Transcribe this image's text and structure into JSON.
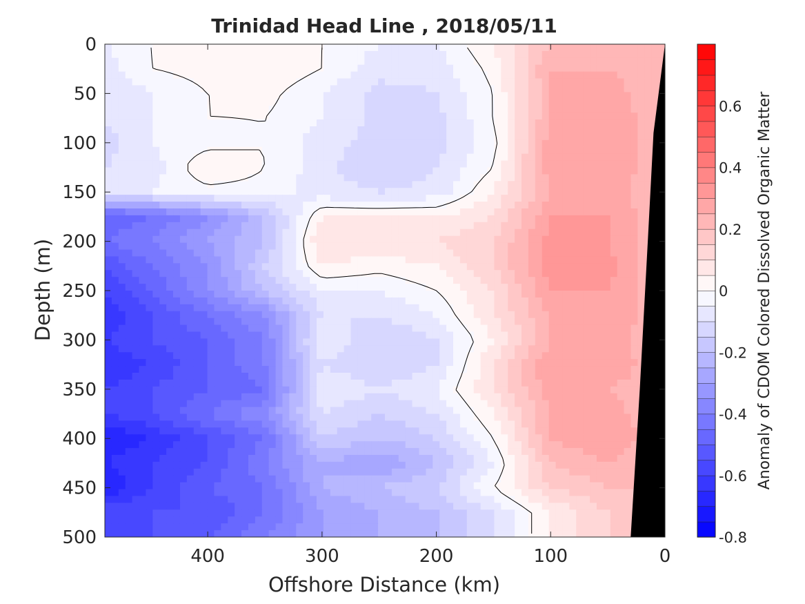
{
  "chart_data": {
    "type": "heatmap",
    "title": "Trinidad Head Line , 2018/05/11",
    "xlabel": "Offshore Distance (km)",
    "ylabel": "Depth (m)",
    "colorbar_label": "Anomaly of CDOM Colored Dissolved Organic Matter",
    "xlim": [
      490,
      0
    ],
    "ylim": [
      0,
      500
    ],
    "x_reversed": true,
    "y_reversed": true,
    "x_ticks": [
      400,
      300,
      200,
      100,
      0
    ],
    "x_tick_labels": [
      "400",
      "300",
      "200",
      "100",
      "0"
    ],
    "y_ticks": [
      0,
      50,
      100,
      150,
      200,
      250,
      300,
      350,
      400,
      450,
      500
    ],
    "y_tick_labels": [
      "0",
      "50",
      "100",
      "150",
      "200",
      "250",
      "300",
      "350",
      "400",
      "450",
      "500"
    ],
    "clim": [
      -0.8,
      0.8
    ],
    "colorbar_ticks": [
      0.6,
      0.4,
      0.2,
      0,
      -0.2,
      -0.4,
      -0.6,
      -0.8
    ],
    "colorbar_tick_labels": [
      "0.6",
      "0.4",
      "0.2",
      "0",
      "-0.2",
      "-0.4",
      "-0.6",
      "-0.8"
    ],
    "colormap": {
      "low": "#0000ff",
      "mid": "#ffffff",
      "high": "#ff0000",
      "levels": 32
    },
    "bottom_fill_color": "#000000",
    "bottom_profile": [
      [
        0,
        0
      ],
      [
        10,
        90
      ],
      [
        15,
        200
      ],
      [
        22,
        350
      ],
      [
        30,
        500
      ]
    ],
    "depth_rows": [
      0,
      25,
      50,
      75,
      100,
      125,
      150,
      175,
      200,
      225,
      250,
      275,
      300,
      325,
      350,
      375,
      400,
      425,
      450,
      475,
      500
    ],
    "distance_cols": [
      490,
      450,
      400,
      350,
      300,
      250,
      200,
      150,
      100,
      50,
      0
    ],
    "anomaly_grid": [
      [
        -0.05,
        0.0,
        0.05,
        0.05,
        0.0,
        -0.05,
        -0.05,
        0.05,
        0.2,
        0.25,
        0.2
      ],
      [
        -0.08,
        0.0,
        0.02,
        0.05,
        0.0,
        -0.08,
        -0.08,
        0.02,
        0.25,
        0.25,
        0.2
      ],
      [
        -0.1,
        -0.05,
        0.0,
        0.02,
        -0.05,
        -0.12,
        -0.1,
        0.0,
        0.25,
        0.28,
        0.2
      ],
      [
        -0.1,
        -0.05,
        0.0,
        0.0,
        -0.05,
        -0.12,
        -0.12,
        0.0,
        0.25,
        0.3,
        0.2
      ],
      [
        -0.12,
        -0.05,
        -0.02,
        0.0,
        -0.08,
        -0.12,
        -0.12,
        -0.02,
        0.28,
        0.3,
        0.2
      ],
      [
        -0.1,
        -0.08,
        0.05,
        0.0,
        -0.08,
        -0.15,
        -0.1,
        0.0,
        0.28,
        0.3,
        0.2
      ],
      [
        -0.08,
        -0.05,
        -0.02,
        -0.02,
        -0.08,
        -0.1,
        -0.08,
        0.05,
        0.25,
        0.28,
        0.2
      ],
      [
        -0.5,
        -0.45,
        -0.35,
        -0.2,
        0.05,
        0.05,
        0.05,
        0.1,
        0.3,
        0.3,
        0.2
      ],
      [
        -0.45,
        -0.4,
        -0.3,
        -0.2,
        0.1,
        0.1,
        0.1,
        0.15,
        0.32,
        0.3,
        0.2
      ],
      [
        -0.55,
        -0.45,
        -0.35,
        -0.15,
        0.05,
        0.02,
        0.05,
        0.15,
        0.33,
        0.32,
        0.2
      ],
      [
        -0.6,
        -0.5,
        -0.35,
        -0.2,
        -0.05,
        -0.05,
        0.0,
        0.1,
        0.3,
        0.3,
        0.2
      ],
      [
        -0.65,
        -0.55,
        -0.45,
        -0.35,
        -0.1,
        -0.1,
        -0.05,
        0.1,
        0.25,
        0.3,
        0.2
      ],
      [
        -0.6,
        -0.55,
        -0.5,
        -0.4,
        -0.05,
        -0.15,
        -0.1,
        0.05,
        0.25,
        0.28,
        0.2
      ],
      [
        -0.65,
        -0.6,
        -0.5,
        -0.4,
        -0.1,
        -0.15,
        -0.1,
        0.1,
        0.3,
        0.3,
        0.2
      ],
      [
        -0.6,
        -0.55,
        -0.5,
        -0.45,
        -0.05,
        -0.1,
        -0.05,
        0.1,
        0.28,
        0.25,
        0.2
      ],
      [
        -0.6,
        -0.55,
        -0.45,
        -0.35,
        -0.1,
        -0.15,
        -0.1,
        0.05,
        0.25,
        0.28,
        0.2
      ],
      [
        -0.7,
        -0.65,
        -0.55,
        -0.45,
        -0.15,
        -0.2,
        -0.15,
        0.0,
        0.25,
        0.3,
        0.2
      ],
      [
        -0.65,
        -0.6,
        -0.55,
        -0.4,
        -0.25,
        -0.3,
        -0.2,
        -0.05,
        0.2,
        0.25,
        0.2
      ],
      [
        -0.7,
        -0.6,
        -0.5,
        -0.45,
        -0.25,
        -0.2,
        -0.15,
        0.0,
        0.15,
        0.2,
        0.2
      ],
      [
        -0.55,
        -0.55,
        -0.55,
        -0.45,
        -0.3,
        -0.25,
        -0.2,
        -0.1,
        0.05,
        0.15,
        0.2
      ],
      [
        -0.6,
        -0.55,
        -0.5,
        -0.4,
        -0.3,
        -0.25,
        -0.2,
        -0.1,
        0.05,
        0.15,
        0.2
      ]
    ]
  }
}
